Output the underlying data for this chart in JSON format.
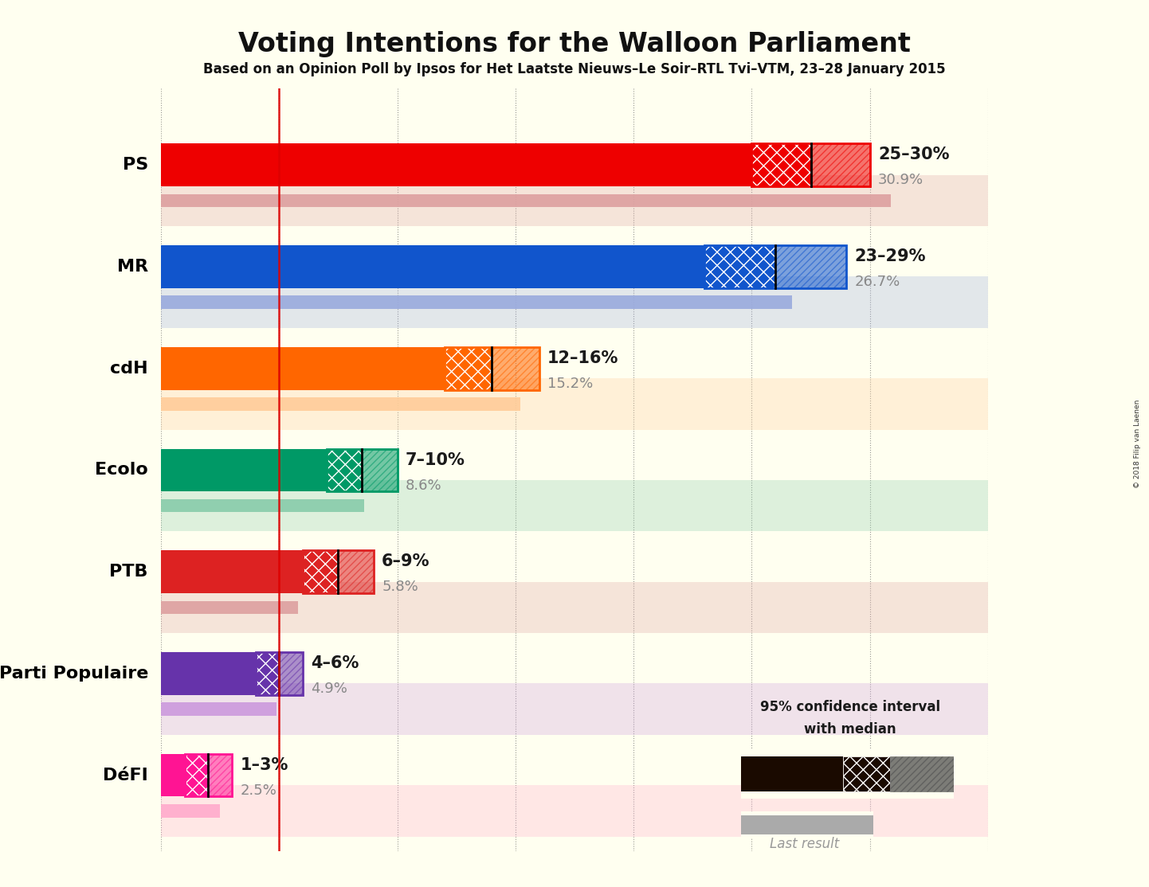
{
  "title": "Voting Intentions for the Walloon Parliament",
  "subtitle": "Based on an Opinion Poll by Ipsos for Het Laatste Nieuws–Le Soir–RTL Tvi–VTM, 23–28 January 2015",
  "copyright": "© 2018 Filip van Laenen",
  "background_color": "#fffff0",
  "parties": [
    "PS",
    "MR",
    "cdH",
    "Ecolo",
    "PTB",
    "Parti Populaire",
    "DéFI"
  ],
  "party_colors": [
    "#ee0000",
    "#1155cc",
    "#ff6600",
    "#009966",
    "#dd2222",
    "#6633aa",
    "#ff1493"
  ],
  "last_result_colors": [
    "#dda0a0",
    "#99aadd",
    "#ffcc99",
    "#88ccaa",
    "#dda0a0",
    "#cc99dd",
    "#ffaacc"
  ],
  "median": [
    27.5,
    26.0,
    14.0,
    8.5,
    7.5,
    5.0,
    2.0
  ],
  "ci_low": [
    25.0,
    23.0,
    12.0,
    7.0,
    6.0,
    4.0,
    1.0
  ],
  "ci_high": [
    30.0,
    29.0,
    16.0,
    10.0,
    9.0,
    6.0,
    3.0
  ],
  "last_result": [
    30.9,
    26.7,
    15.2,
    8.6,
    5.8,
    4.9,
    2.5
  ],
  "ci_labels": [
    "25–30%",
    "23–29%",
    "12–16%",
    "7–10%",
    "6–9%",
    "4–6%",
    "1–3%"
  ],
  "last_labels": [
    "30.9%",
    "26.7%",
    "15.2%",
    "8.6%",
    "5.8%",
    "4.9%",
    "2.5%"
  ],
  "xlim_max": 35,
  "red_line_x": 5.0,
  "title_fontsize": 24,
  "subtitle_fontsize": 12,
  "party_label_fontsize": 16,
  "ci_label_fontsize": 15,
  "last_label_fontsize": 13
}
